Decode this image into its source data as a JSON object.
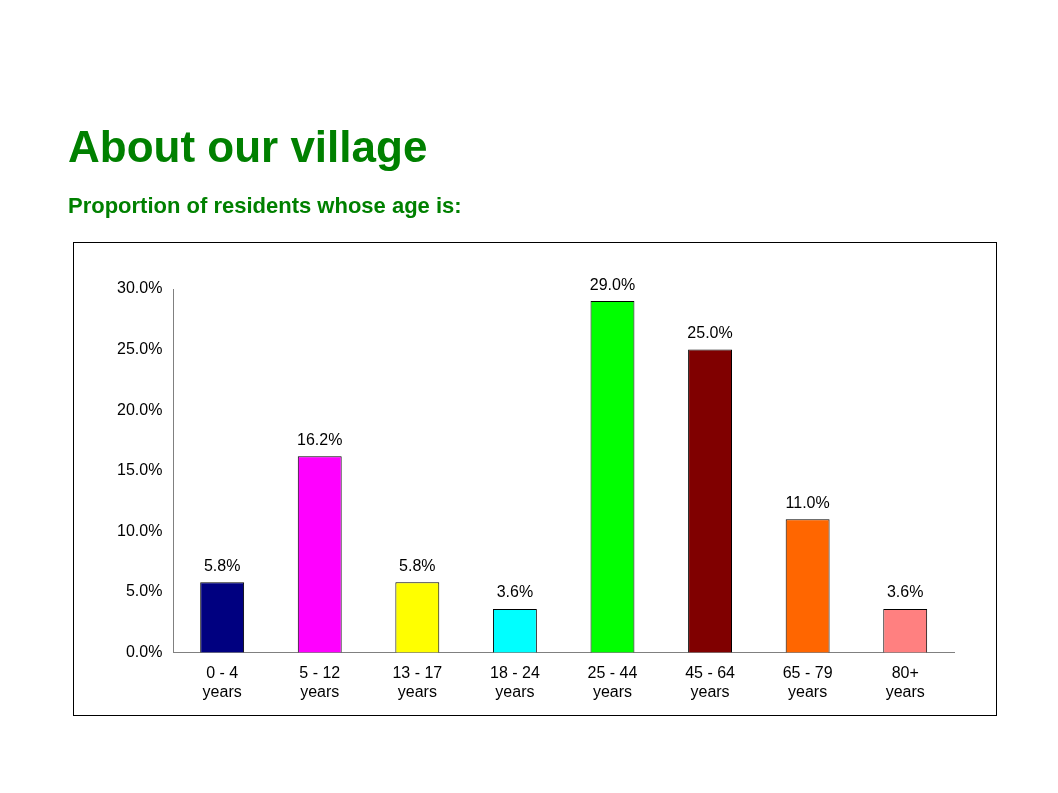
{
  "chart_data": {
    "type": "bar",
    "title": "About our village",
    "subtitle": "Proportion of residents whose age is:",
    "categories": [
      "0 - 4 years",
      "5 - 12 years",
      "13 - 17 years",
      "18 - 24 years",
      "25 - 44 years",
      "45 - 64 years",
      "65 - 79 years",
      "80+ years"
    ],
    "values": [
      5.8,
      16.2,
      5.8,
      3.6,
      29.0,
      25.0,
      11.0,
      3.6
    ],
    "colors": [
      "#000080",
      "#ff00ff",
      "#ffff00",
      "#00ffff",
      "#00ff00",
      "#800000",
      "#ff6600",
      "#ff8080"
    ],
    "value_labels": [
      "5.8%",
      "16.2%",
      "5.8%",
      "3.6%",
      "29.0%",
      "25.0%",
      "11.0%",
      "3.6%"
    ],
    "ylim": [
      0,
      30
    ],
    "yticks": [
      {
        "value": 0,
        "label": "0.0%"
      },
      {
        "value": 5,
        "label": "5.0%"
      },
      {
        "value": 10,
        "label": "10.0%"
      },
      {
        "value": 15,
        "label": "15.0%"
      },
      {
        "value": 20,
        "label": "20.0%"
      },
      {
        "value": 25,
        "label": "25.0%"
      },
      {
        "value": 30,
        "label": "30.0%"
      }
    ],
    "grid": false,
    "legend": false
  }
}
